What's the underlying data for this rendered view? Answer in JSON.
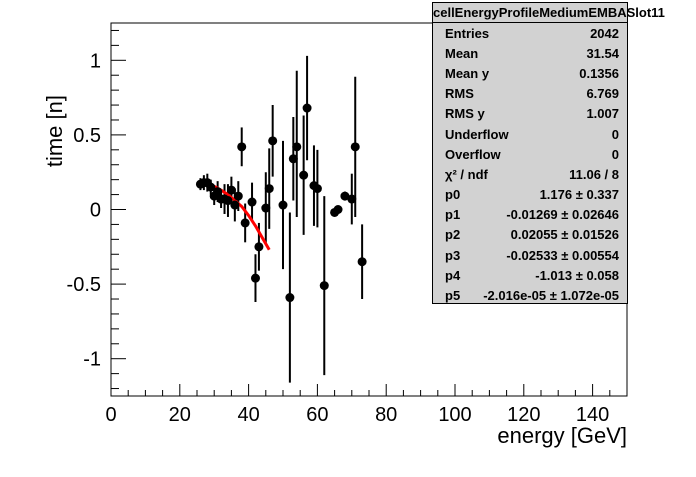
{
  "colors": {
    "markers": "#000000",
    "fit_line": "#ff0000",
    "stats_background": "#d2d2d2"
  },
  "stats": {
    "title": "cellEnergyProfileMediumEMBASlot11",
    "rows": [
      {
        "label": "Entries",
        "value": "2042"
      },
      {
        "label": "Mean",
        "value": "31.54"
      },
      {
        "label": "Mean y",
        "value": "0.1356"
      },
      {
        "label": "RMS",
        "value": "6.769"
      },
      {
        "label": "RMS y",
        "value": "1.007"
      },
      {
        "label": "Underflow",
        "value": "0"
      },
      {
        "label": "Overflow",
        "value": "0"
      },
      {
        "label": "χ² / ndf",
        "value": "11.06 / 8"
      },
      {
        "label": "p0",
        "value": "1.176 ± 0.337"
      },
      {
        "label": "p1",
        "value": "-0.01269 ± 0.02646"
      },
      {
        "label": "p2",
        "value": "0.02055 ± 0.01526"
      },
      {
        "label": "p3",
        "value": "-0.02533 ± 0.00554"
      },
      {
        "label": "p4",
        "value": "-1.013 ± 0.058"
      },
      {
        "label": "p5",
        "value": "-2.016e-05 ± 1.072e-05"
      }
    ]
  },
  "chart_data": {
    "type": "scatter",
    "xlabel": "energy [GeV]",
    "ylabel": "time [n]",
    "xlim": [
      0,
      150
    ],
    "ylim": [
      -1.25,
      1.25
    ],
    "x_ticks": [
      0,
      20,
      40,
      60,
      80,
      100,
      120,
      140
    ],
    "y_ticks": [
      -1,
      -0.5,
      0,
      0.5,
      1
    ],
    "y_tick_labels": [
      "-1",
      "-0.5",
      "0",
      "0.5",
      "1"
    ],
    "grid": false,
    "points": [
      {
        "x": 26,
        "y": 0.17,
        "ylo": 0.13,
        "yhi": 0.21
      },
      {
        "x": 27,
        "y": 0.18,
        "ylo": 0.13,
        "yhi": 0.23
      },
      {
        "x": 28,
        "y": 0.18,
        "ylo": 0.12,
        "yhi": 0.24
      },
      {
        "x": 29,
        "y": 0.15,
        "ylo": 0.1,
        "yhi": 0.2
      },
      {
        "x": 30,
        "y": 0.09,
        "ylo": 0.03,
        "yhi": 0.15
      },
      {
        "x": 31,
        "y": 0.12,
        "ylo": 0.05,
        "yhi": 0.19
      },
      {
        "x": 32,
        "y": 0.07,
        "ylo": 0.01,
        "yhi": 0.13
      },
      {
        "x": 33,
        "y": 0.07,
        "ylo": -0.03,
        "yhi": 0.17
      },
      {
        "x": 34,
        "y": 0.06,
        "ylo": -0.05,
        "yhi": 0.17
      },
      {
        "x": 35,
        "y": 0.13,
        "ylo": 0.04,
        "yhi": 0.22
      },
      {
        "x": 36,
        "y": 0.03,
        "ylo": -0.08,
        "yhi": 0.14
      },
      {
        "x": 37,
        "y": 0.09,
        "ylo": -0.01,
        "yhi": 0.19
      },
      {
        "x": 38,
        "y": 0.42,
        "ylo": 0.29,
        "yhi": 0.55
      },
      {
        "x": 39,
        "y": -0.09,
        "ylo": -0.22,
        "yhi": 0.04
      },
      {
        "x": 41,
        "y": 0.05,
        "ylo": -0.08,
        "yhi": 0.18
      },
      {
        "x": 42,
        "y": -0.46,
        "ylo": -0.62,
        "yhi": -0.3
      },
      {
        "x": 43,
        "y": -0.25,
        "ylo": -0.41,
        "yhi": -0.09
      },
      {
        "x": 45,
        "y": 0.01,
        "ylo": -0.23,
        "yhi": 0.25
      },
      {
        "x": 46,
        "y": 0.14,
        "ylo": -0.13,
        "yhi": 0.41
      },
      {
        "x": 47,
        "y": 0.46,
        "ylo": 0.22,
        "yhi": 0.7
      },
      {
        "x": 50,
        "y": 0.03,
        "ylo": -0.4,
        "yhi": 0.46
      },
      {
        "x": 52,
        "y": -0.59,
        "ylo": -1.16,
        "yhi": -0.02
      },
      {
        "x": 53,
        "y": 0.34,
        "ylo": 0.06,
        "yhi": 0.62
      },
      {
        "x": 54,
        "y": 0.42,
        "ylo": -0.05,
        "yhi": 0.93
      },
      {
        "x": 56,
        "y": 0.23,
        "ylo": -0.17,
        "yhi": 0.63
      },
      {
        "x": 57,
        "y": 0.68,
        "ylo": 0.33,
        "yhi": 1.03
      },
      {
        "x": 59,
        "y": 0.16,
        "ylo": -0.11,
        "yhi": 0.43
      },
      {
        "x": 60,
        "y": 0.14,
        "ylo": -0.12,
        "yhi": 0.4
      },
      {
        "x": 62,
        "y": -0.51,
        "ylo": -1.11,
        "yhi": 0.09
      },
      {
        "x": 65,
        "y": -0.02,
        "ylo": -0.04,
        "yhi": 0.0
      },
      {
        "x": 66,
        "y": 0.0,
        "ylo": -0.02,
        "yhi": 0.02
      },
      {
        "x": 68,
        "y": 0.09,
        "ylo": 0.06,
        "yhi": 0.12
      },
      {
        "x": 70,
        "y": 0.07,
        "ylo": -0.1,
        "yhi": 0.24
      },
      {
        "x": 71,
        "y": 0.42,
        "ylo": -0.05,
        "yhi": 0.89
      },
      {
        "x": 73,
        "y": -0.35,
        "ylo": -0.6,
        "yhi": -0.1
      }
    ],
    "fit": {
      "x": [
        26,
        28,
        30,
        32,
        34,
        36,
        38,
        40,
        42,
        44,
        46
      ],
      "y": [
        0.18,
        0.17,
        0.155,
        0.13,
        0.1,
        0.06,
        0.02,
        -0.04,
        -0.11,
        -0.19,
        -0.27
      ]
    }
  }
}
